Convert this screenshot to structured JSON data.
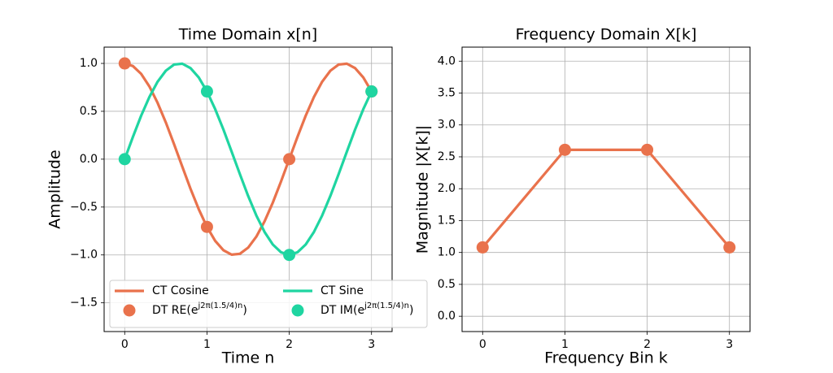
{
  "chart_data": [
    {
      "type": "line",
      "title": "Time Domain x[n]",
      "x_label": "Time n",
      "y_label": "Amplitude",
      "xlim": [
        -0.25,
        3.25
      ],
      "ylim": [
        -1.8,
        1.17
      ],
      "grid": true,
      "legend": "lower left",
      "xticks": [
        0,
        1,
        2,
        3
      ],
      "yticks": [
        {
          "value": -1.5,
          "label": "−1.5"
        },
        {
          "value": -1.0,
          "label": "−1.0"
        },
        {
          "value": -0.5,
          "label": "−0.5"
        },
        {
          "value": 0.0,
          "label": "0.0"
        },
        {
          "value": 0.5,
          "label": "0.5"
        },
        {
          "value": 1.0,
          "label": "1.0"
        }
      ],
      "series": [
        {
          "name": "CT Cosine",
          "type": "line",
          "color": "#e9724c",
          "x": [
            0,
            0.1,
            0.2,
            0.3,
            0.4,
            0.5,
            0.6,
            0.7,
            0.8,
            0.9,
            1.0,
            1.1,
            1.2,
            1.3,
            1.4,
            1.5,
            1.6,
            1.7,
            1.8,
            1.9,
            2.0,
            2.1,
            2.2,
            2.3,
            2.4,
            2.5,
            2.6,
            2.7,
            2.8,
            2.9,
            3.0
          ],
          "values": [
            1,
            0.972,
            0.891,
            0.76,
            0.588,
            0.383,
            0.156,
            -0.078,
            -0.309,
            -0.522,
            -0.707,
            -0.853,
            -0.951,
            -0.997,
            -0.988,
            -0.924,
            -0.809,
            -0.649,
            -0.454,
            -0.233,
            0,
            0.233,
            0.454,
            0.649,
            0.809,
            0.924,
            0.988,
            0.997,
            0.951,
            0.853,
            0.707
          ]
        },
        {
          "name": "CT Sine",
          "type": "line",
          "color": "#1fd5a1",
          "x": [
            0,
            0.1,
            0.2,
            0.3,
            0.4,
            0.5,
            0.6,
            0.7,
            0.8,
            0.9,
            1.0,
            1.1,
            1.2,
            1.3,
            1.4,
            1.5,
            1.6,
            1.7,
            1.8,
            1.9,
            2.0,
            2.1,
            2.2,
            2.3,
            2.4,
            2.5,
            2.6,
            2.7,
            2.8,
            2.9,
            3.0
          ],
          "values": [
            0,
            0.233,
            0.454,
            0.649,
            0.809,
            0.924,
            0.988,
            0.997,
            0.951,
            0.853,
            0.707,
            0.522,
            0.309,
            0.078,
            -0.156,
            -0.383,
            -0.588,
            -0.76,
            -0.891,
            -0.972,
            -1,
            -0.972,
            -0.891,
            -0.76,
            -0.588,
            -0.383,
            -0.156,
            0.078,
            0.309,
            0.522,
            0.707
          ]
        },
        {
          "name": "DT RE(ej2π(1.5/4)n)",
          "type": "scatter",
          "color": "#e9724c",
          "x": [
            0,
            1,
            2,
            3
          ],
          "values": [
            1,
            -0.707,
            0,
            0.707
          ]
        },
        {
          "name": "DT IM(ej2π(1.5/4)n)",
          "type": "scatter",
          "color": "#1fd5a1",
          "x": [
            0,
            1,
            2,
            3
          ],
          "values": [
            0,
            0.707,
            -1,
            0.707
          ]
        }
      ]
    },
    {
      "type": "line",
      "title": "Frequency Domain X[k]",
      "x_label": "Frequency Bin k",
      "y_label": "Magnitude |X[k]|",
      "xlim": [
        -0.25,
        3.25
      ],
      "ylim": [
        -0.24,
        4.22
      ],
      "grid": true,
      "xticks": [
        0,
        1,
        2,
        3
      ],
      "yticks": [
        {
          "value": 0,
          "label": "0.0"
        },
        {
          "value": 0.5,
          "label": "0.5"
        },
        {
          "value": 1,
          "label": "1.0"
        },
        {
          "value": 1.5,
          "label": "1.5"
        },
        {
          "value": 2,
          "label": "2.0"
        },
        {
          "value": 2.5,
          "label": "2.5"
        },
        {
          "value": 3,
          "label": "3.0"
        },
        {
          "value": 3.5,
          "label": "3.5"
        },
        {
          "value": 4,
          "label": "4.0"
        }
      ],
      "series": [
        {
          "type": "line",
          "marker": true,
          "color": "#e9724c",
          "x": [
            0,
            1,
            2,
            3
          ],
          "values": [
            1.08,
            2.61,
            2.61,
            1.08
          ]
        }
      ]
    }
  ]
}
